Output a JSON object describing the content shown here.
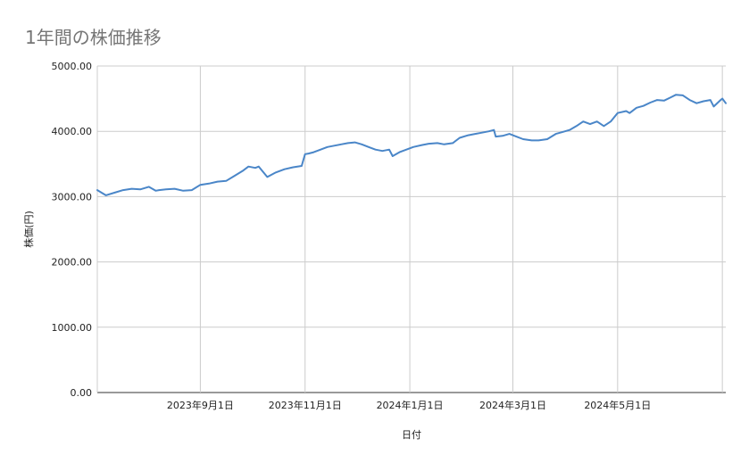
{
  "chart_data": {
    "type": "line",
    "title": "1年間の株価推移",
    "xlabel": "日付",
    "ylabel": "株価(円)",
    "ylim": [
      0,
      5000
    ],
    "yticks": [
      0,
      1000,
      2000,
      3000,
      4000,
      5000
    ],
    "ytick_labels": [
      "0.00",
      "1000.00",
      "2000.00",
      "3000.00",
      "4000.00",
      "5000.00"
    ],
    "xlim": [
      "2023-07-03",
      "2024-07-03"
    ],
    "xticks": [
      "2023-09-01",
      "2023-11-01",
      "2024-01-01",
      "2024-03-01",
      "2024-05-01",
      "2024-07-01"
    ],
    "xtick_labels": [
      "2023年9月1日",
      "2023年11月1日",
      "2024年1月1日",
      "2024年3月1日",
      "2024年5月1日",
      ""
    ],
    "grid": true,
    "legend": "none",
    "line_color": "#4a86c8",
    "series": [
      {
        "x": [
          "2023-07-03",
          "2023-07-08",
          "2023-07-13",
          "2023-07-18",
          "2023-07-23",
          "2023-07-28",
          "2023-08-02",
          "2023-08-06",
          "2023-08-08",
          "2023-08-12",
          "2023-08-17",
          "2023-08-22",
          "2023-08-27",
          "2023-09-01",
          "2023-09-06",
          "2023-09-11",
          "2023-09-16",
          "2023-09-21",
          "2023-09-26",
          "2023-09-29",
          "2023-10-03",
          "2023-10-05",
          "2023-10-10",
          "2023-10-15",
          "2023-10-20",
          "2023-10-25",
          "2023-10-30",
          "2023-11-01",
          "2023-11-03",
          "2023-11-06",
          "2023-11-10",
          "2023-11-14",
          "2023-11-18",
          "2023-11-22",
          "2023-11-26",
          "2023-11-30",
          "2023-12-04",
          "2023-12-08",
          "2023-12-12",
          "2023-12-16",
          "2023-12-20",
          "2023-12-22",
          "2023-12-26",
          "2023-12-30",
          "2024-01-03",
          "2024-01-08",
          "2024-01-12",
          "2024-01-17",
          "2024-01-21",
          "2024-01-26",
          "2024-01-30",
          "2024-02-04",
          "2024-02-08",
          "2024-02-12",
          "2024-02-16",
          "2024-02-19",
          "2024-02-20",
          "2024-02-24",
          "2024-02-28",
          "2024-03-03",
          "2024-03-07",
          "2024-03-12",
          "2024-03-16",
          "2024-03-21",
          "2024-03-26",
          "2024-03-30",
          "2024-04-03",
          "2024-04-07",
          "2024-04-11",
          "2024-04-15",
          "2024-04-19",
          "2024-04-23",
          "2024-04-27",
          "2024-05-01",
          "2024-05-06",
          "2024-05-08",
          "2024-05-12",
          "2024-05-16",
          "2024-05-20",
          "2024-05-24",
          "2024-05-28",
          "2024-06-01",
          "2024-06-04",
          "2024-06-08",
          "2024-06-12",
          "2024-06-16",
          "2024-06-20",
          "2024-06-24",
          "2024-06-26",
          "2024-06-30",
          "2024-07-01",
          "2024-07-03"
        ],
        "y": [
          3100,
          3020,
          3060,
          3100,
          3120,
          3110,
          3150,
          3090,
          3100,
          3110,
          3120,
          3090,
          3100,
          3180,
          3200,
          3230,
          3240,
          3320,
          3400,
          3460,
          3440,
          3460,
          3300,
          3370,
          3420,
          3450,
          3470,
          3650,
          3660,
          3680,
          3720,
          3760,
          3780,
          3800,
          3820,
          3830,
          3800,
          3760,
          3720,
          3700,
          3720,
          3620,
          3680,
          3720,
          3760,
          3790,
          3810,
          3820,
          3800,
          3820,
          3900,
          3940,
          3960,
          3980,
          4000,
          4020,
          3920,
          3930,
          3960,
          3920,
          3880,
          3860,
          3860,
          3880,
          3960,
          3990,
          4020,
          4080,
          4150,
          4110,
          4150,
          4080,
          4150,
          4280,
          4310,
          4280,
          4360,
          4390,
          4440,
          4480,
          4470,
          4520,
          4560,
          4550,
          4480,
          4430,
          4460,
          4480,
          4380,
          4480,
          4500,
          4430
        ]
      }
    ]
  }
}
